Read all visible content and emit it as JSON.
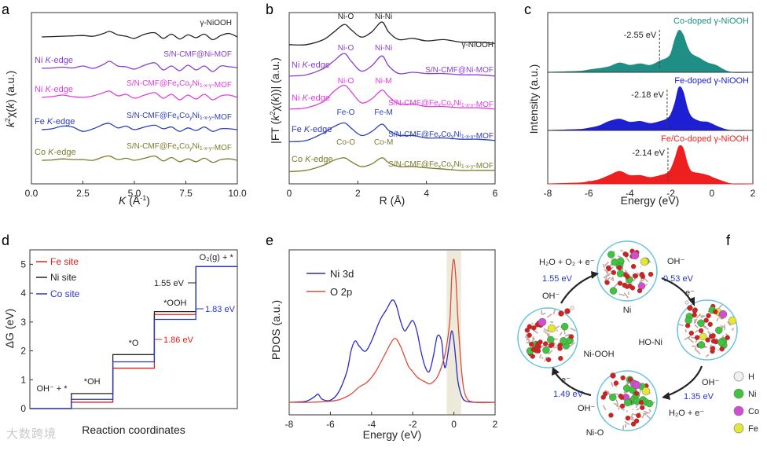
{
  "watermark": "大数跨境",
  "chart_data": [
    {
      "panel": "a",
      "type": "line",
      "xlabel": "K (Å⁻¹)",
      "ylabel": "k²χ(k) (a.u.)",
      "xlim": [
        0,
        10
      ],
      "xticks": [
        "0.0",
        "2.5",
        "5.0",
        "7.5",
        "10.0"
      ],
      "series": [
        {
          "name": "γ-NiOOH",
          "edge": "",
          "color": "#222222",
          "offset": 4.0,
          "amp": 0.22,
          "x": [
            0.5,
            1,
            1.5,
            2,
            2.5,
            3,
            3.5,
            3.8,
            4.2,
            4.6,
            5,
            5.5,
            6,
            6.4,
            6.8,
            7.2,
            7.6,
            8,
            8.4,
            8.8,
            9.2,
            9.6,
            10
          ],
          "y": [
            0,
            0.05,
            0.1,
            0.15,
            0.2,
            0.1,
            0.5,
            0.8,
            0.3,
            0.1,
            -0.2,
            0.4,
            0.6,
            -0.2,
            0.4,
            -0.3,
            0.3,
            -0.1,
            0.4,
            -0.4,
            0.2,
            0.5,
            0
          ]
        },
        {
          "name": "S/N-CMF@Ni-MOF",
          "edge": "Ni K-edge",
          "color": "#8a3fd1",
          "offset": 3.0,
          "amp": 0.25,
          "x": [
            0.5,
            1,
            1.5,
            2,
            2.5,
            3,
            3.5,
            3.8,
            4.2,
            4.6,
            5,
            5.5,
            6,
            6.4,
            6.8,
            7.2,
            7.6,
            8,
            8.4,
            8.8,
            9.2,
            9.6,
            10
          ],
          "y": [
            0,
            0.05,
            0.15,
            0.05,
            0.3,
            0.0,
            0.5,
            0.9,
            0.3,
            0.2,
            -0.1,
            0.4,
            0.7,
            -0.2,
            0.3,
            -0.3,
            0.4,
            -0.2,
            0.3,
            -0.4,
            0.3,
            0.2,
            0.1
          ]
        },
        {
          "name": "S/N-CMF@FexCoyNi1-x-y-MOF",
          "edge": "Ni K-edge",
          "color": "#e13de0",
          "offset": 2.0,
          "amp": 0.25,
          "x": [
            0.5,
            1,
            1.5,
            2,
            2.5,
            3,
            3.5,
            3.8,
            4.2,
            4.6,
            5,
            5.5,
            6,
            6.4,
            6.8,
            7.2,
            7.6,
            8,
            8.4,
            8.8,
            9.2,
            9.6,
            10
          ],
          "y": [
            0,
            0.1,
            0.3,
            0.1,
            0.0,
            0.2,
            0.6,
            0.8,
            0.2,
            0.4,
            -0.1,
            0.3,
            0.6,
            -0.1,
            0.4,
            -0.3,
            0.3,
            -0.2,
            0.4,
            -0.3,
            0.2,
            0.3,
            0
          ]
        },
        {
          "name": "S/N-CMF@FexCoyNi1-x-y-MOF",
          "edge": "Fe K-edge",
          "color": "#2c3db8",
          "offset": 1.0,
          "amp": 0.28,
          "x": [
            0.5,
            1,
            1.5,
            2,
            2.5,
            3,
            3.5,
            3.8,
            4.2,
            4.6,
            5,
            5.5,
            6,
            6.4,
            6.8,
            7.2,
            7.6,
            8,
            8.4,
            8.8,
            9.2,
            9.6,
            10
          ],
          "y": [
            0,
            0.1,
            0.4,
            0.3,
            -0.2,
            0.1,
            0.6,
            0.7,
            0.2,
            0.4,
            0.0,
            0.3,
            0.5,
            0.1,
            0.3,
            -0.2,
            0.2,
            -0.1,
            0.3,
            -0.2,
            0.1,
            0.1,
            0
          ]
        },
        {
          "name": "S/N-CMF@FexCoyNi1-x-y-MOF",
          "edge": "Co K-edge",
          "color": "#7c7c2c",
          "offset": 0.0,
          "amp": 0.22,
          "x": [
            0.5,
            1,
            1.5,
            2,
            2.5,
            3,
            3.5,
            3.8,
            4.2,
            4.6,
            5,
            5.5,
            6,
            6.4,
            6.8,
            7.2,
            7.6,
            8,
            8.4,
            8.8,
            9.2,
            9.6,
            10
          ],
          "y": [
            0,
            0.05,
            0.2,
            0.1,
            0.1,
            0.0,
            0.5,
            0.6,
            0.1,
            0.3,
            0.0,
            0.3,
            0.6,
            -0.1,
            0.4,
            -0.2,
            0.2,
            -0.2,
            0.3,
            -0.3,
            0.1,
            0.2,
            0
          ]
        }
      ]
    },
    {
      "panel": "b",
      "type": "line",
      "xlabel": "R (Å)",
      "ylabel": "|FT (k²χ(k))| (a.u.)",
      "xlim": [
        0,
        6
      ],
      "xticks": [
        "0",
        "2",
        "4",
        "6"
      ],
      "series": [
        {
          "name": "γ-NiOOH",
          "edge": "",
          "color": "#222222",
          "offset": 4.0,
          "peaks": [
            "Ni-O",
            "Ni-Ni"
          ],
          "x": [
            0,
            0.5,
            1,
            1.3,
            1.6,
            1.8,
            2.1,
            2.4,
            2.7,
            2.9,
            3.2,
            3.6,
            4,
            4.5,
            5,
            5.5,
            6
          ],
          "y": [
            0.1,
            0.1,
            0.3,
            0.6,
            0.9,
            0.7,
            0.4,
            0.6,
            1.0,
            0.6,
            0.3,
            0.35,
            0.25,
            0.3,
            0.2,
            0.2,
            0.15
          ]
        },
        {
          "name": "S/N-CMF@Ni-MOF",
          "edge": "Ni K-edge",
          "color": "#8a3fd1",
          "offset": 3.0,
          "peaks": [
            "Ni-O",
            "Ni-Ni"
          ],
          "x": [
            0,
            0.5,
            1,
            1.3,
            1.6,
            1.8,
            2.1,
            2.4,
            2.7,
            2.9,
            3.2,
            3.6,
            4,
            4.5,
            5,
            5.5,
            6
          ],
          "y": [
            0.1,
            0.15,
            0.4,
            0.7,
            1.0,
            0.7,
            0.3,
            0.5,
            0.9,
            0.5,
            0.2,
            0.25,
            0.2,
            0.2,
            0.15,
            0.15,
            0.1
          ]
        },
        {
          "name": "S/N-CMF@FexCoyNi1-x-y-MOF",
          "edge": "Ni K-edge",
          "color": "#e13de0",
          "offset": 2.0,
          "peaks": [
            "Ni-O",
            "Ni-M"
          ],
          "x": [
            0,
            0.5,
            1,
            1.3,
            1.6,
            1.8,
            2.1,
            2.4,
            2.7,
            2.9,
            3.2,
            3.6,
            4,
            4.5,
            5,
            5.5,
            6
          ],
          "y": [
            0.1,
            0.15,
            0.4,
            0.8,
            1.05,
            0.8,
            0.35,
            0.5,
            0.85,
            0.6,
            0.3,
            0.3,
            0.2,
            0.2,
            0.15,
            0.15,
            0.1
          ]
        },
        {
          "name": "S/N-CMF@FexCoyNi1-x-y-MOF",
          "edge": "Fe K-edge",
          "color": "#2c3db8",
          "offset": 1.0,
          "peaks": [
            "Fe-O",
            "Fe-M"
          ],
          "x": [
            0,
            0.5,
            1,
            1.3,
            1.6,
            1.8,
            2.1,
            2.4,
            2.7,
            2.9,
            3.2,
            3.6,
            4,
            4.5,
            5,
            5.5,
            6
          ],
          "y": [
            0.05,
            0.1,
            0.4,
            0.65,
            0.8,
            0.6,
            0.3,
            0.45,
            0.75,
            0.5,
            0.3,
            0.3,
            0.2,
            0.2,
            0.15,
            0.15,
            0.1
          ]
        },
        {
          "name": "S/N-CMF@FexCoyNi1-x-y-MOF",
          "edge": "Co K-edge",
          "color": "#7c7c2c",
          "offset": 0.0,
          "peaks": [
            "Co-O",
            "Co-M"
          ],
          "x": [
            0,
            0.5,
            1,
            1.3,
            1.6,
            1.8,
            2.1,
            2.4,
            2.7,
            2.9,
            3.2,
            3.6,
            4,
            4.5,
            5,
            5.5,
            6
          ],
          "y": [
            0.05,
            0.1,
            0.3,
            0.5,
            0.6,
            0.45,
            0.25,
            0.35,
            0.6,
            0.4,
            0.25,
            0.25,
            0.2,
            0.15,
            0.1,
            0.1,
            0.1
          ]
        }
      ]
    },
    {
      "panel": "c",
      "type": "area",
      "xlabel": "Energy (eV)",
      "ylabel": "Intensity (a.u.)",
      "xlim": [
        -8,
        2
      ],
      "xticks": [
        "-8",
        "-6",
        "-4",
        "-2",
        "0",
        "2"
      ],
      "series": [
        {
          "name": "Co-doped γ-NiOOH",
          "color": "#1f8f85",
          "offset": 2,
          "dband": -2.55,
          "dband_label": "-2.55 eV",
          "x": [
            -8,
            -6.5,
            -6,
            -5.5,
            -5,
            -4.5,
            -4,
            -3.5,
            -3,
            -2.5,
            -2.2,
            -2,
            -1.8,
            -1.6,
            -1.4,
            -1.2,
            -1,
            -0.6,
            -0.2,
            0.2,
            0.6,
            1,
            2
          ],
          "y": [
            0,
            0.02,
            0.05,
            0.08,
            0.12,
            0.2,
            0.15,
            0.18,
            0.15,
            0.25,
            0.3,
            0.4,
            0.7,
            0.9,
            0.8,
            0.55,
            0.4,
            0.3,
            0.2,
            0.15,
            0.05,
            0,
            0
          ]
        },
        {
          "name": "Fe-doped γ-NiOOH",
          "color": "#1e1ed2",
          "offset": 1,
          "dband": -2.18,
          "dband_label": "-2.18 eV",
          "x": [
            -8,
            -6.5,
            -6,
            -5.5,
            -5,
            -4.5,
            -4,
            -3.5,
            -3,
            -2.5,
            -2.2,
            -2,
            -1.8,
            -1.6,
            -1.4,
            -1.2,
            -1,
            -0.6,
            -0.2,
            0.2,
            0.6,
            1,
            2
          ],
          "y": [
            0,
            0.02,
            0.05,
            0.1,
            0.2,
            0.25,
            0.18,
            0.2,
            0.15,
            0.2,
            0.25,
            0.35,
            0.6,
            0.95,
            0.85,
            0.5,
            0.3,
            0.2,
            0.18,
            0.1,
            0.03,
            0,
            0
          ]
        },
        {
          "name": "Fe/Co-doped γ-NiOOH",
          "color": "#ee1f1f",
          "offset": 0,
          "dband": -2.14,
          "dband_label": "-2.14 eV",
          "x": [
            -8,
            -6.5,
            -6,
            -5.5,
            -5,
            -4.5,
            -4,
            -3.5,
            -3,
            -2.5,
            -2.2,
            -2,
            -1.8,
            -1.6,
            -1.4,
            -1.2,
            -1,
            -0.6,
            -0.2,
            0.2,
            0.6,
            1,
            2
          ],
          "y": [
            0,
            0.02,
            0.05,
            0.1,
            0.2,
            0.3,
            0.2,
            0.2,
            0.15,
            0.2,
            0.25,
            0.35,
            0.6,
            0.9,
            0.85,
            0.5,
            0.3,
            0.25,
            0.2,
            0.12,
            0.05,
            0,
            0
          ]
        }
      ]
    },
    {
      "panel": "d",
      "type": "line",
      "subtype": "step",
      "xlabel": "Reaction coordinates",
      "ylabel": "ΔG (eV)",
      "ylim": [
        0,
        5.5
      ],
      "yticks": [
        "0",
        "1",
        "2",
        "3",
        "4",
        "5"
      ],
      "states": [
        "OH⁻ + *",
        "*OH",
        "*O",
        "*OOH",
        "O₂(g) + *"
      ],
      "legend": [
        "Fe site",
        "Ni site",
        "Co site"
      ],
      "series": [
        {
          "name": "Fe site",
          "color": "#e02020",
          "values": [
            0,
            0.22,
            1.4,
            3.26,
            4.92
          ]
        },
        {
          "name": "Ni site",
          "color": "#222222",
          "values": [
            0,
            0.52,
            1.87,
            3.36,
            4.92
          ]
        },
        {
          "name": "Co site",
          "color": "#2438c8",
          "values": [
            0,
            0.32,
            1.62,
            3.09,
            4.92
          ]
        }
      ],
      "annotations": [
        {
          "text": "1.55 eV",
          "color": "#222222"
        },
        {
          "text": "1.83 eV",
          "color": "#2438c8"
        },
        {
          "text": "1.86 eV",
          "color": "#e02020"
        }
      ]
    },
    {
      "panel": "e",
      "type": "line",
      "xlabel": "Energy (eV)",
      "ylabel": "PDOS (a.u.)",
      "xlim": [
        -8,
        2
      ],
      "xticks": [
        "-8",
        "-6",
        "-4",
        "-2",
        "0",
        "2"
      ],
      "series": [
        {
          "name": "Ni 3d",
          "color": "#2b2bc0",
          "x": [
            -8,
            -7.2,
            -6.8,
            -6.6,
            -6.4,
            -6,
            -5.6,
            -5.2,
            -5,
            -4.8,
            -4.6,
            -4.3,
            -4,
            -3.6,
            -3.3,
            -3,
            -2.8,
            -2.6,
            -2.4,
            -2.2,
            -2,
            -1.8,
            -1.6,
            -1.4,
            -1.2,
            -1,
            -0.8,
            -0.6,
            -0.5,
            -0.4,
            -0.2,
            -0.1,
            0,
            0.1,
            0.2,
            0.4,
            0.6,
            1,
            2
          ],
          "y": [
            0,
            0.01,
            0.05,
            0.08,
            0.03,
            0.02,
            0.1,
            0.3,
            0.5,
            0.6,
            0.55,
            0.5,
            0.6,
            0.8,
            0.9,
            1.0,
            0.95,
            0.8,
            0.7,
            0.75,
            0.8,
            0.7,
            0.5,
            0.35,
            0.3,
            0.45,
            0.65,
            0.6,
            0.4,
            0.35,
            0.6,
            0.7,
            0.6,
            0.4,
            0.2,
            0.05,
            0.01,
            0,
            0
          ]
        },
        {
          "name": "O 2p",
          "color": "#e04a3a",
          "x": [
            -8,
            -7,
            -6,
            -5.5,
            -5,
            -4.6,
            -4.2,
            -3.8,
            -3.4,
            -3,
            -2.8,
            -2.6,
            -2.4,
            -2.2,
            -2,
            -1.8,
            -1.6,
            -1.4,
            -1.2,
            -1,
            -0.8,
            -0.6,
            -0.4,
            -0.2,
            -0.1,
            0,
            0.1,
            0.2,
            0.4,
            0.6,
            1,
            2
          ],
          "y": [
            0,
            0,
            0.01,
            0.03,
            0.08,
            0.15,
            0.2,
            0.3,
            0.45,
            0.6,
            0.62,
            0.55,
            0.45,
            0.35,
            0.3,
            0.25,
            0.22,
            0.2,
            0.18,
            0.2,
            0.25,
            0.35,
            0.5,
            0.8,
            1.25,
            1.4,
            1.2,
            0.8,
            0.25,
            0.05,
            0,
            0
          ]
        }
      ],
      "highlight_band": [
        -0.35,
        0.35
      ]
    }
  ],
  "panel_f": {
    "title": "f",
    "states": [
      "Ni",
      "HO-Ni",
      "Ni-O",
      "Ni-OOH"
    ],
    "steps": [
      {
        "reactant": "OH⁻",
        "product": "e⁻",
        "energy": "0.53 eV"
      },
      {
        "reactant": "OH⁻",
        "product": "H₂O + e⁻",
        "energy": "1.35 eV"
      },
      {
        "reactant": "OH⁻",
        "product": "e⁻",
        "energy": "1.49 eV"
      },
      {
        "reactant": "OH⁻",
        "product": "H₂O + O₂ + e⁻",
        "energy": "1.55 eV"
      }
    ],
    "legend": [
      {
        "label": "H",
        "color": "#f0f0f0"
      },
      {
        "label": "Ni",
        "color": "#3fc43f"
      },
      {
        "label": "Co",
        "color": "#d04fd0"
      },
      {
        "label": "Fe",
        "color": "#e6e63a"
      }
    ],
    "colors": {
      "O": "#d81f1f",
      "H": "#f0f0f0",
      "Ni": "#3fc43f",
      "Co": "#d04fd0",
      "Fe": "#e6e63a"
    }
  }
}
